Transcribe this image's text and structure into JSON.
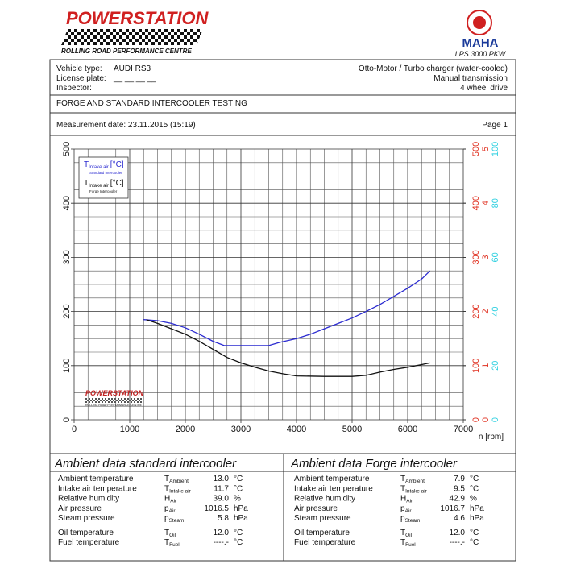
{
  "header": {
    "brand": "POWERSTATION",
    "brand_sub": "ROLLING ROAD PERFORMANCE CENTRE",
    "maker": "MAHA",
    "model": "LPS 3000 PKW"
  },
  "info": {
    "left": [
      {
        "label": "Vehicle type:",
        "value": "AUDI RS3"
      },
      {
        "label": "License plate:",
        "value": "__ __ __ __"
      },
      {
        "label": "Inspector:"
      }
    ],
    "right": [
      "Otto-Motor / Turbo charger (water-cooled)",
      "Manual transmission",
      "4 wheel drive"
    ],
    "test_title": "FORGE AND STANDARD INTERCOOLER TESTING",
    "measurement": "Measurement date: 23.11.2015 (15:19)",
    "page": "Page 1"
  },
  "chart_data": {
    "type": "line",
    "xlabel": "n [rpm]",
    "xlim": [
      0,
      7000
    ],
    "xticks": [
      0,
      1000,
      2000,
      3000,
      4000,
      5000,
      6000,
      7000
    ],
    "ylim": [
      0,
      500
    ],
    "yticks": [
      0,
      100,
      200,
      300,
      400,
      500
    ],
    "right_axes": [
      {
        "color": "#e03020",
        "lim": [
          0,
          500
        ],
        "ticks": [
          0,
          100,
          200,
          300,
          400,
          500
        ]
      },
      {
        "color": "#e03020",
        "lim": [
          0,
          5
        ],
        "ticks": [
          0,
          1,
          2,
          3,
          4,
          5
        ]
      },
      {
        "color": "#30d0e0",
        "lim": [
          0,
          100
        ],
        "ticks": [
          0,
          20,
          40,
          60,
          80,
          100
        ]
      }
    ],
    "grid": true,
    "watermark": {
      "brand": "POWERSTATION",
      "sub": "ROLLING ROAD PERFORMANCE CENTRE"
    },
    "series": [
      {
        "name": "T",
        "sub": "Intake air",
        "unit": "[°C]",
        "note": "Standard Intercooler",
        "color": "#2a2ad0",
        "x": [
          1250,
          1500,
          1750,
          2000,
          2250,
          2500,
          2700,
          3000,
          3500,
          3700,
          4000,
          4250,
          4500,
          4750,
          5000,
          5250,
          5500,
          5750,
          6000,
          6250,
          6400
        ],
        "values": [
          185,
          183,
          178,
          170,
          158,
          145,
          137,
          137,
          137,
          143,
          150,
          158,
          168,
          178,
          188,
          200,
          213,
          228,
          243,
          260,
          275
        ]
      },
      {
        "name": "T",
        "sub": "Intake air",
        "unit": "[°C]",
        "note": "Forge Intercooler",
        "color": "#111111",
        "x": [
          1300,
          1500,
          1750,
          2000,
          2250,
          2500,
          2750,
          3000,
          3250,
          3500,
          3750,
          4000,
          4500,
          5000,
          5250,
          5500,
          5750,
          6000,
          6250,
          6400
        ],
        "values": [
          185,
          178,
          168,
          158,
          145,
          130,
          115,
          105,
          97,
          90,
          85,
          81,
          80,
          80,
          82,
          88,
          93,
          97,
          102,
          105
        ]
      }
    ]
  },
  "tables": [
    {
      "title": "Ambient data standard intercooler",
      "rows": [
        {
          "label": "Ambient temperature",
          "sym": "T",
          "sub": "Ambient",
          "value": "13.0",
          "unit": "°C"
        },
        {
          "label": "Intake air temperature",
          "sym": "T",
          "sub": "Intake air",
          "value": "11.7",
          "unit": "°C"
        },
        {
          "label": "Relative humidity",
          "sym": "H",
          "sub": "Air",
          "value": "39.0",
          "unit": "%"
        },
        {
          "label": "Air pressure",
          "sym": "p",
          "sub": "Air",
          "value": "1016.5",
          "unit": "hPa"
        },
        {
          "label": "Steam pressure",
          "sym": "p",
          "sub": "Steam",
          "value": "5.8",
          "unit": "hPa"
        },
        {
          "label": "Oil temperature",
          "sym": "T",
          "sub": "Oil",
          "value": "12.0",
          "unit": "°C"
        },
        {
          "label": "Fuel temperature",
          "sym": "T",
          "sub": "Fuel",
          "value": "----.-",
          "unit": "°C"
        }
      ]
    },
    {
      "title": "Ambient data Forge intercooler",
      "rows": [
        {
          "label": "Ambient temperature",
          "sym": "T",
          "sub": "Ambient",
          "value": "7.9",
          "unit": "°C"
        },
        {
          "label": "Intake air temperature",
          "sym": "T",
          "sub": "Intake air",
          "value": "9.5",
          "unit": "°C"
        },
        {
          "label": "Relative humidity",
          "sym": "H",
          "sub": "Air",
          "value": "42.9",
          "unit": "%"
        },
        {
          "label": "Air pressure",
          "sym": "p",
          "sub": "Air",
          "value": "1016.7",
          "unit": "hPa"
        },
        {
          "label": "Steam pressure",
          "sym": "p",
          "sub": "Steam",
          "value": "4.6",
          "unit": "hPa"
        },
        {
          "label": "Oil temperature",
          "sym": "T",
          "sub": "Oil",
          "value": "12.0",
          "unit": "°C"
        },
        {
          "label": "Fuel temperature",
          "sym": "T",
          "sub": "Fuel",
          "value": "----.-",
          "unit": "°C"
        }
      ]
    }
  ]
}
